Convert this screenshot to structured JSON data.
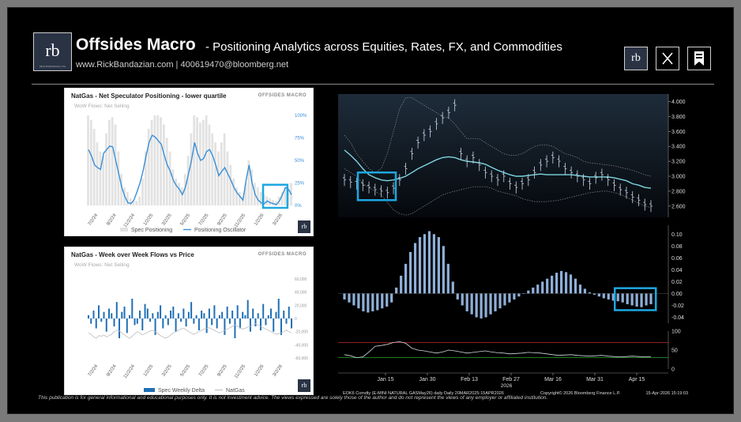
{
  "header": {
    "logo_text": "rb",
    "logo_caption": "RICK BANDAZIAN, CFA",
    "title": "Offsides Macro",
    "subtitle": "- Positioning Analytics across Equities, Rates, FX, and Commodities",
    "contact": "www.RickBandazian.com  |  400619470@bloomberg.net",
    "icons": [
      "rb-logo-icon",
      "x-icon",
      "bookmark-icon"
    ]
  },
  "panel1": {
    "title": "NatGas - Net Speculator Positioning - lower quartile",
    "brand": "OFFSIDES MACRO",
    "subtitle": "WoW Flows: Net Selling",
    "corner_logo": "rb",
    "legend": [
      "Spec Positioning",
      "Positioning Oscillator"
    ]
  },
  "panel2": {
    "title": "NatGas - Week over Week Flows vs Price",
    "brand": "OFFSIDES MACRO",
    "subtitle": "WoW Flows: Net Selling",
    "corner_logo": "rb",
    "legend": [
      "Spec Weekly Delta",
      "NatGas"
    ]
  },
  "bloomberg": {
    "footer_left": "EOK6 Comdty (E-MINI NATURAL GASMay26) daily Daily 20MAR2025-15APR2026",
    "footer_mid": "Copyright© 2026 Bloomberg Finance L.P.",
    "footer_right": "15-Apr-2026 15:19:03",
    "year_label": "2026"
  },
  "disclaimer": "This publication is for general informational and educational purposes only. It is not investment advice. The views expressed are solely those of the author and do not represent the views of any employer or affiliated institution.",
  "colors": {
    "accent": "#1ea7e1",
    "bar_blue": "#1f6fb5",
    "macd_bar": "#8fb0d8",
    "bb_mid": "#7fd6e0",
    "panel_bg": "#ffffff"
  },
  "chart_data": [
    {
      "type": "area",
      "title": "NatGas - Net Speculator Positioning - lower quartile",
      "y_right_ticks": [
        "100%",
        "75%",
        "50%",
        "25%",
        "0%"
      ],
      "ylim": [
        0,
        100
      ],
      "x_ticks": [
        "7/2/24",
        "9/2/24",
        "11/2/24",
        "1/2/25",
        "3/2/25",
        "5/2/25",
        "7/2/25",
        "9/2/25",
        "11/2/25",
        "1/2/26",
        "3/2/26"
      ],
      "series": [
        {
          "name": "Spec Positioning",
          "values": [
            100,
            95,
            85,
            70,
            60,
            55,
            80,
            95,
            98,
            90,
            60,
            35,
            20,
            15,
            8,
            5,
            5,
            10,
            30,
            60,
            85,
            95,
            100,
            100,
            98,
            90,
            75,
            60,
            40,
            30,
            25,
            20,
            35,
            55,
            80,
            100,
            98,
            92,
            95,
            100,
            90,
            80,
            70,
            60,
            70,
            80,
            60,
            45,
            30,
            20,
            15,
            10,
            25,
            50,
            40,
            25,
            20,
            15,
            12,
            10,
            8,
            6,
            5,
            10,
            15,
            20,
            18,
            25
          ]
        },
        {
          "name": "Positioning Oscillator",
          "values": [
            62,
            55,
            45,
            42,
            40,
            58,
            62,
            66,
            65,
            50,
            35,
            20,
            10,
            3,
            2,
            6,
            15,
            25,
            38,
            55,
            70,
            78,
            76,
            72,
            68,
            56,
            45,
            38,
            28,
            22,
            18,
            12,
            20,
            35,
            50,
            70,
            58,
            50,
            52,
            60,
            62,
            55,
            45,
            33,
            38,
            42,
            35,
            28,
            20,
            14,
            10,
            6,
            28,
            45,
            25,
            12,
            6,
            3,
            2,
            5,
            3,
            2,
            1,
            5,
            12,
            20,
            18,
            12
          ]
        }
      ],
      "highlight_box": "x 88%-97%, y 0-8%"
    },
    {
      "type": "bar",
      "title": "NatGas - Week over Week Flows vs Price",
      "y_right_ticks": [
        "60,000",
        "40,000",
        "20,000",
        "0",
        "-20,000",
        "-40,000",
        "-60,000"
      ],
      "ylim": [
        -60000,
        60000
      ],
      "x_ticks": [
        "7/2/24",
        "9/2/24",
        "11/2/24",
        "1/2/25",
        "3/2/25",
        "5/2/25",
        "7/2/25",
        "9/2/25",
        "11/2/25",
        "1/2/26",
        "3/2/26"
      ],
      "series": [
        {
          "name": "Spec Weekly Delta",
          "values": [
            5000,
            -8000,
            12000,
            -15000,
            20000,
            -5000,
            10000,
            -20000,
            15000,
            8000,
            -12000,
            25000,
            -30000,
            10000,
            18000,
            -22000,
            5000,
            30000,
            -10000,
            -8000,
            12000,
            -18000,
            22000,
            15000,
            -5000,
            8000,
            -25000,
            10000,
            20000,
            -15000,
            5000,
            -10000,
            12000,
            18000,
            -20000,
            8000,
            -5000,
            15000,
            -12000,
            10000,
            25000,
            -8000,
            5000,
            -18000,
            12000,
            8000,
            -22000,
            15000,
            -10000,
            20000,
            -15000,
            5000,
            10000,
            -25000,
            18000,
            -8000,
            12000,
            -30000,
            20000,
            -15000,
            10000,
            5000,
            28000,
            -20000,
            15000,
            -12000,
            8000,
            -18000,
            22000,
            -10000,
            5000,
            15000,
            -20000,
            10000,
            30000,
            -25000,
            12000,
            -8000,
            18000,
            -15000
          ]
        },
        {
          "name": "NatGas",
          "values": [
            -22000,
            -24000,
            -28000,
            -30000,
            -26000,
            -27000,
            -25000,
            -28000,
            -26000,
            -24000,
            -20000,
            -18000,
            -19000,
            -22000,
            -25000,
            -28000,
            -30000,
            -27000,
            -23000,
            -20000,
            -22000,
            -25000,
            -23000,
            -21000,
            -19000,
            -18000,
            -20000,
            -23000,
            -26000,
            -28000,
            -30000,
            -28000,
            -25000,
            -22000,
            -20000,
            -18000,
            -16000,
            -15000,
            -17000,
            -20000,
            -22000,
            -24000,
            -22000,
            -20000,
            -18000,
            -16000,
            -15000,
            -14000,
            -16000,
            -18000,
            -20000,
            -22000,
            -20000,
            -18000,
            -16000,
            -14000,
            -12000,
            -10000,
            -12000,
            -14000,
            -16000,
            -15000,
            -13000,
            -12000,
            -10000,
            -8000,
            -10000,
            -12000,
            -14000,
            -16000,
            -18000,
            -20000,
            -22000,
            -24000,
            -23000,
            -22000,
            -20000,
            -18000,
            -20000,
            -22000
          ]
        }
      ]
    },
    {
      "type": "line",
      "title": "",
      "y_ticks": [
        4.0,
        3.8,
        3.6,
        3.4,
        3.2,
        3.0,
        2.8,
        2.6
      ],
      "y_tick_labels": [
        "4.000",
        "3.800",
        "3.600",
        "3.400",
        "3.200",
        "3.000",
        "2.800",
        "2.600"
      ],
      "ylim": [
        2.45,
        4.1
      ],
      "series": [
        {
          "name": "Close",
          "values": [
            2.95,
            2.92,
            2.9,
            2.88,
            2.85,
            2.82,
            2.8,
            2.78,
            2.84,
            2.95,
            3.1,
            3.3,
            3.45,
            3.55,
            3.6,
            3.7,
            3.78,
            3.85,
            3.95,
            3.3,
            3.2,
            3.25,
            3.15,
            3.05,
            3.0,
            2.95,
            3.0,
            2.9,
            2.85,
            2.9,
            2.95,
            3.05,
            3.15,
            3.2,
            3.25,
            3.2,
            3.1,
            3.05,
            3.0,
            2.95,
            2.9,
            2.98,
            3.02,
            2.95,
            2.88,
            2.82,
            2.78,
            2.72,
            2.68,
            2.62,
            2.6
          ]
        },
        {
          "name": "BB Mid",
          "values": [
            3.35,
            3.28,
            3.2,
            3.1,
            3.02,
            2.98,
            2.95,
            2.94,
            2.95,
            2.97,
            3.0,
            3.05,
            3.1,
            3.14,
            3.18,
            3.22,
            3.25,
            3.26,
            3.25,
            3.22,
            3.2,
            3.19,
            3.18,
            3.16,
            3.12,
            3.08,
            3.05,
            3.02,
            3.0,
            3.0,
            3.01,
            3.02,
            3.03,
            3.02,
            3.02,
            3.02,
            3.02,
            3.02,
            3.01,
            3.0,
            2.99,
            2.99,
            2.99,
            2.99,
            2.98,
            2.96,
            2.94,
            2.9,
            2.88,
            2.85,
            2.84
          ]
        },
        {
          "name": "BB Upper",
          "values": [
            3.55,
            3.45,
            3.3,
            3.2,
            3.1,
            3.05,
            3.1,
            3.3,
            3.6,
            3.9,
            4.05,
            4.05,
            4.0,
            3.95,
            3.9,
            3.85,
            3.8,
            3.78,
            3.7,
            3.6,
            3.5,
            3.5,
            3.5,
            3.45,
            3.4,
            3.35,
            3.3,
            3.28,
            3.28,
            3.3,
            3.35,
            3.4,
            3.42,
            3.42,
            3.4,
            3.35,
            3.3,
            3.28,
            3.25,
            3.2,
            3.18,
            3.17,
            3.16,
            3.15,
            3.14,
            3.12,
            3.1,
            3.08,
            3.05,
            3.02,
            3.0
          ]
        },
        {
          "name": "BB Lower",
          "values": [
            3.1,
            3.05,
            3.0,
            2.9,
            2.85,
            2.8,
            2.75,
            2.65,
            2.55,
            2.5,
            2.48,
            2.5,
            2.55,
            2.6,
            2.65,
            2.7,
            2.75,
            2.78,
            2.8,
            2.82,
            2.84,
            2.86,
            2.86,
            2.86,
            2.84,
            2.8,
            2.78,
            2.76,
            2.74,
            2.7,
            2.68,
            2.66,
            2.66,
            2.66,
            2.67,
            2.68,
            2.7,
            2.72,
            2.74,
            2.76,
            2.78,
            2.79,
            2.8,
            2.8,
            2.78,
            2.76,
            2.72,
            2.68,
            2.64,
            2.6,
            2.58
          ]
        }
      ],
      "highlight_box": "first ~6 bars, y 2.7-3.05"
    },
    {
      "type": "bar",
      "title": "",
      "y_tick_labels": [
        "0.10",
        "0.08",
        "0.06",
        "0.04",
        "0.02",
        "0.00",
        "-0.02",
        "-0.04"
      ],
      "ylim": [
        -0.05,
        0.115
      ],
      "values": [
        -0.01,
        -0.015,
        -0.02,
        -0.025,
        -0.03,
        -0.032,
        -0.03,
        -0.028,
        -0.025,
        -0.022,
        -0.015,
        0.01,
        0.03,
        0.05,
        0.07,
        0.085,
        0.095,
        0.1,
        0.105,
        0.1,
        0.095,
        0.08,
        0.05,
        0.02,
        -0.01,
        -0.02,
        -0.03,
        -0.035,
        -0.04,
        -0.042,
        -0.04,
        -0.035,
        -0.03,
        -0.025,
        -0.02,
        -0.015,
        -0.01,
        -0.005,
        0.0,
        0.005,
        0.01,
        0.015,
        0.02,
        0.025,
        0.03,
        0.035,
        0.038,
        0.036,
        0.032,
        0.025,
        0.015,
        0.008,
        0.002,
        -0.002,
        -0.005,
        -0.008,
        -0.01,
        -0.012,
        -0.013,
        -0.015,
        -0.018,
        -0.02,
        -0.022,
        -0.023,
        -0.02,
        -0.018
      ],
      "highlight_box": "last ~8 bars"
    },
    {
      "type": "line",
      "title": "",
      "y_tick_labels": [
        "100",
        "50",
        "0"
      ],
      "ylim": [
        0,
        100
      ],
      "x_ticks": [
        "Jan 15",
        "Jan 30",
        "Feb 13",
        "Feb 27",
        "Mar 16",
        "Mar 31",
        "Apr 15"
      ],
      "series": [
        {
          "name": "RSI",
          "values": [
            38,
            35,
            30,
            32,
            45,
            60,
            62,
            65,
            70,
            72,
            68,
            55,
            50,
            48,
            45,
            42,
            45,
            50,
            48,
            45,
            42,
            44,
            46,
            48,
            45,
            43,
            42,
            40,
            41,
            42,
            44,
            43,
            42,
            40,
            38,
            36,
            37,
            38,
            36,
            35,
            34,
            35,
            36,
            34,
            33,
            32,
            33,
            34,
            33,
            32,
            33
          ]
        },
        {
          "name": "Overbought",
          "values": [
            70
          ]
        },
        {
          "name": "Oversold",
          "values": [
            30
          ]
        }
      ]
    }
  ]
}
